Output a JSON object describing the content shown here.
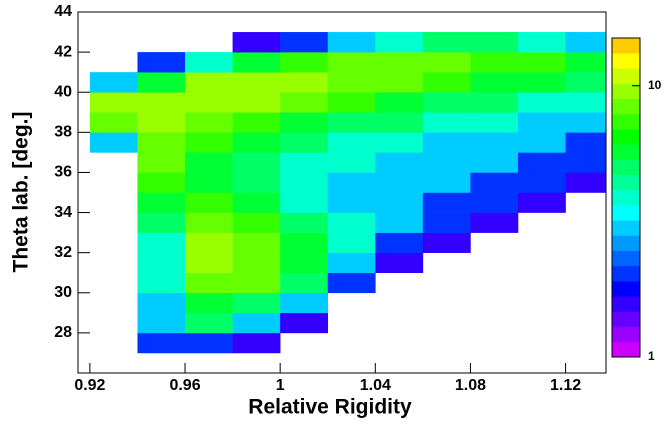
{
  "chart_data": {
    "type": "heatmap",
    "x_label": "Relative Rigidity",
    "y_label": "Theta lab. [deg.]",
    "x_bins": [
      0.92,
      0.94,
      0.96,
      0.98,
      1.0,
      1.02,
      1.04,
      1.06,
      1.08,
      1.1,
      1.12,
      1.14
    ],
    "y_bins": [
      27,
      28,
      29,
      30,
      31,
      32,
      33,
      34,
      35,
      36,
      37,
      38,
      39,
      40,
      41,
      42,
      43
    ],
    "values": [
      [
        null,
        2,
        2,
        1.5,
        null,
        null,
        null,
        null,
        null,
        null,
        null
      ],
      [
        null,
        3,
        5,
        3,
        1.5,
        null,
        null,
        null,
        null,
        null,
        null
      ],
      [
        null,
        3,
        6,
        5,
        3,
        null,
        null,
        null,
        null,
        null,
        null
      ],
      [
        null,
        4,
        8,
        8,
        5,
        2,
        null,
        null,
        null,
        null,
        null
      ],
      [
        null,
        4,
        9,
        8,
        6,
        3,
        1.5,
        null,
        null,
        null,
        null
      ],
      [
        null,
        4,
        9,
        8,
        6,
        4,
        2,
        1.5,
        null,
        null,
        null
      ],
      [
        null,
        5,
        8,
        7,
        5,
        4,
        3,
        2,
        1.5,
        null,
        null
      ],
      [
        null,
        6,
        7,
        6,
        4,
        3,
        3,
        2,
        2,
        1.5,
        null
      ],
      [
        null,
        7,
        6,
        5,
        4,
        3,
        3,
        3,
        2,
        2,
        1.5
      ],
      [
        null,
        8,
        6,
        5,
        4,
        4,
        3,
        3,
        3,
        2,
        2
      ],
      [
        3,
        8,
        7,
        6,
        5,
        4,
        4,
        3,
        3,
        3,
        2
      ],
      [
        8,
        9,
        8,
        7,
        6,
        5,
        5,
        4,
        4,
        3,
        3
      ],
      [
        9,
        10,
        9,
        9,
        8,
        7,
        6,
        5,
        5,
        4,
        4
      ],
      [
        3,
        6,
        9,
        9,
        9,
        8,
        8,
        7,
        6,
        6,
        5
      ],
      [
        null,
        2,
        4,
        6,
        7,
        8,
        8,
        8,
        7,
        7,
        6
      ],
      [
        null,
        null,
        null,
        1.5,
        2,
        3,
        4,
        5,
        5,
        4,
        3
      ]
    ],
    "xlim": [
      0.915,
      1.137
    ],
    "ylim": [
      26,
      44
    ],
    "xticks": [
      0.92,
      0.96,
      1,
      1.04,
      1.08,
      1.12
    ],
    "yticks": [
      28,
      30,
      32,
      34,
      36,
      38,
      40,
      42,
      44
    ],
    "zlim": [
      1,
      15
    ],
    "zticks": [
      1,
      10
    ],
    "log_z": true,
    "palette": [
      "#cc00ff",
      "#9900ff",
      "#6600ff",
      "#3300ff",
      "#0000ff",
      "#0033ff",
      "#0066ff",
      "#0099ff",
      "#00ccff",
      "#00ffff",
      "#00ffcc",
      "#00ff99",
      "#00ff66",
      "#00ff33",
      "#00ff00",
      "#33ff00",
      "#66ff00",
      "#99ff00",
      "#ccff00",
      "#ffff00",
      "#ffcc00"
    ]
  }
}
